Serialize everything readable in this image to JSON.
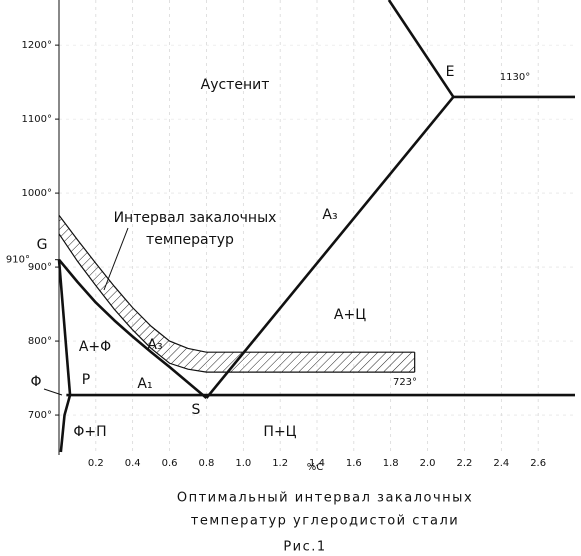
{
  "chart_data": {
    "type": "phase-diagram",
    "xlabel": "%C",
    "xlim": [
      0,
      2.8
    ],
    "ylim": [
      646,
      1261
    ],
    "xticks": [
      0.2,
      0.4,
      0.6,
      0.8,
      {
        "value": 1,
        "label": "1.0"
      },
      1.2,
      1.4,
      1.6,
      1.8,
      {
        "value": 2,
        "label": "2.0"
      },
      2.2,
      2.4,
      2.6
    ],
    "yticks": [
      {
        "value": 700,
        "label": "700°"
      },
      {
        "value": 800,
        "label": "800°"
      },
      {
        "value": 900,
        "label": "900°"
      },
      {
        "value": 910,
        "label": "910°"
      },
      {
        "value": 1000,
        "label": "1000°"
      },
      {
        "value": 1100,
        "label": "1100°"
      },
      {
        "value": 1200,
        "label": "1200°"
      }
    ],
    "grid": true,
    "color": "#111111",
    "lines": [
      {
        "x": [
          0,
          0.1,
          0.2,
          0.3,
          0.4,
          0.5,
          0.6,
          0.7,
          0.8
        ],
        "y": [
          910,
          880,
          852,
          828,
          806,
          785,
          765,
          744,
          723
        ]
      },
      {
        "x": [
          0.8,
          2.14
        ],
        "y": [
          723,
          1130
        ]
      },
      {
        "x": [
          1.79,
          2.14,
          2.8
        ],
        "y": [
          1261,
          1130,
          1130
        ]
      },
      {
        "x": [
          0.04,
          2.8
        ],
        "y": [
          727,
          727
        ]
      },
      {
        "x": [
          0,
          0.06
        ],
        "y": [
          910,
          727
        ]
      },
      {
        "x": [
          0.06,
          0.03,
          0.01
        ],
        "y": [
          727,
          700,
          650
        ]
      }
    ],
    "band": {
      "x": [
        0,
        0.1,
        0.2,
        0.3,
        0.4,
        0.5,
        0.6,
        0.7,
        0.8,
        1.93
      ],
      "upper": [
        970,
        937,
        905,
        874,
        845,
        820,
        800,
        790,
        785,
        785
      ],
      "lower": [
        945,
        908,
        875,
        843,
        815,
        790,
        770,
        762,
        758,
        758
      ]
    },
    "annotations": [
      "Аустенит",
      "E",
      "1130°",
      "A₃",
      "Интервал закалочных",
      "температур",
      "G",
      "A+Ц",
      "A+Φ",
      "A₃",
      "Φ",
      "P",
      "A₁",
      "723°",
      "S",
      "Φ+П",
      "П+Ц"
    ],
    "caption": [
      "Оптимальный интервал закалочных",
      "температур углеродистой стали",
      "Рис.1"
    ]
  }
}
